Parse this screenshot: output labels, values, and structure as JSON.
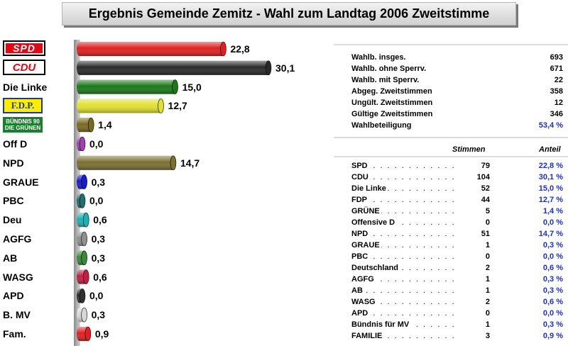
{
  "title": "Ergebnis Gemeinde Zemitz -  Wahl zum Landtag 2006 Zweitstimme",
  "logos": {
    "spd": "SPD",
    "cdu": "CDU",
    "fdp": "F.D.P.",
    "gruene_line1": "BÜNDNIS 90",
    "gruene_line2": "DIE GRÜNEN"
  },
  "chart_data": {
    "type": "bar",
    "orientation": "horizontal",
    "categories": [
      "SPD",
      "CDU",
      "Die Linke",
      "F.D.P.",
      "Bündnis 90/Die Grünen",
      "Off D",
      "NPD",
      "GRAUE",
      "PBC",
      "Deu",
      "AGFG",
      "AB",
      "WASG",
      "APD",
      "B. MV",
      "Fam."
    ],
    "values": [
      22.8,
      30.1,
      15.0,
      12.7,
      1.4,
      0.0,
      14.7,
      0.3,
      0.0,
      0.6,
      0.3,
      0.3,
      0.6,
      0.0,
      0.3,
      0.9
    ],
    "value_labels": [
      "22,8",
      "30,1",
      "15,0",
      "12,7",
      "1,4",
      "0,0",
      "14,7",
      "0,3",
      "0,0",
      "0,6",
      "0,3",
      "0,3",
      "0,6",
      "0,0",
      "0,3",
      "0,9"
    ],
    "colors": [
      "#e02020",
      "#2a2a2a",
      "#1a7a1a",
      "#e0e030",
      "#7a6a20",
      "#a040b0",
      "#7a7030",
      "#1a1ad0",
      "#207070",
      "#20b0b0",
      "#909090",
      "#3a8a3a",
      "#c02040",
      "#303030",
      "#d8d8d8",
      "#e02020"
    ],
    "xlim": [
      0,
      31
    ]
  },
  "text_labels": [
    "Die Linke",
    "Off D",
    "NPD",
    "GRAUE",
    "PBC",
    "Deu",
    "AGFG",
    "AB",
    "WASG",
    "APD",
    "B. MV",
    "Fam."
  ],
  "summary": [
    {
      "label": "Wahlb. insges.",
      "value": "693"
    },
    {
      "label": "Wahlb. ohne Sperrv.",
      "value": "671"
    },
    {
      "label": "Wahlb. mit Sperrv.",
      "value": "22"
    },
    {
      "label": "Abgeg. Zweitstimmen",
      "value": "358"
    },
    {
      "label": "Ungült. Zweitstimmen",
      "value": "12"
    },
    {
      "label": "Gültige Zweitstimmen",
      "value": "346"
    },
    {
      "label": "Wahlbeteiligung",
      "value": "53,4 %"
    }
  ],
  "table": {
    "head_votes": "Stimmen",
    "head_share": "Anteil",
    "rows": [
      {
        "party": "SPD",
        "votes": "79",
        "share": "22,8 %"
      },
      {
        "party": "CDU",
        "votes": "104",
        "share": "30,1 %"
      },
      {
        "party": "Die Linke",
        "votes": "52",
        "share": "15,0 %"
      },
      {
        "party": "FDP",
        "votes": "44",
        "share": "12,7 %"
      },
      {
        "party": "GRÜNE",
        "votes": "5",
        "share": "1,4 %"
      },
      {
        "party": "Offensive D",
        "votes": "0",
        "share": "0,0 %"
      },
      {
        "party": "NPD",
        "votes": "51",
        "share": "14,7 %"
      },
      {
        "party": "GRAUE",
        "votes": "1",
        "share": "0,3 %"
      },
      {
        "party": "PBC",
        "votes": "0",
        "share": "0,0 %"
      },
      {
        "party": "Deutschland",
        "votes": "2",
        "share": "0,6 %"
      },
      {
        "party": "AGFG",
        "votes": "1",
        "share": "0,3 %"
      },
      {
        "party": "AB",
        "votes": "1",
        "share": "0,3 %"
      },
      {
        "party": "WASG",
        "votes": "2",
        "share": "0,6 %"
      },
      {
        "party": "APD",
        "votes": "0",
        "share": "0,0 %"
      },
      {
        "party": "Bündnis für MV",
        "votes": "1",
        "share": "0,3 %"
      },
      {
        "party": "FAMILIE",
        "votes": "3",
        "share": "0,9 %"
      }
    ]
  }
}
